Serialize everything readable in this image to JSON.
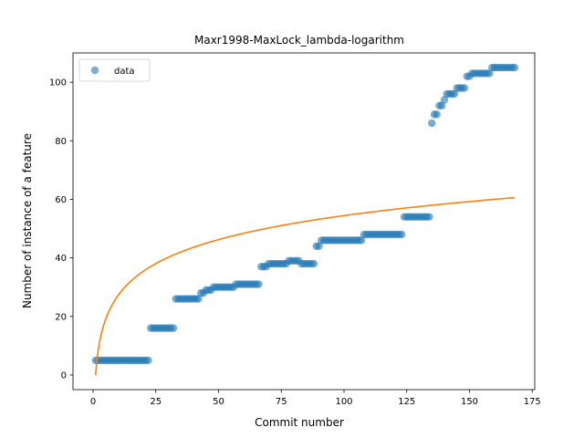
{
  "chart_data": {
    "type": "scatter",
    "title": "Maxr1998-MaxLock_lambda-logarithm",
    "xlabel": "Commit number",
    "ylabel": "Number of instance of a feature",
    "xlim": [
      -8,
      176
    ],
    "ylim": [
      -5,
      110
    ],
    "xticks": [
      0,
      25,
      50,
      75,
      100,
      125,
      150,
      175
    ],
    "yticks": [
      0,
      20,
      40,
      60,
      80,
      100
    ],
    "grid": false,
    "legend": {
      "position": "top-left",
      "entries": [
        "data"
      ]
    },
    "series": [
      {
        "name": "data",
        "kind": "points",
        "color": "#1f77b4",
        "steps": [
          {
            "from": 1,
            "to": 22,
            "y": 5
          },
          {
            "from": 23,
            "to": 32,
            "y": 16
          },
          {
            "from": 33,
            "to": 42,
            "y": 26
          },
          {
            "from": 43,
            "to": 44,
            "y": 28
          },
          {
            "from": 45,
            "to": 47,
            "y": 29
          },
          {
            "from": 48,
            "to": 56,
            "y": 30
          },
          {
            "from": 57,
            "to": 66,
            "y": 31
          },
          {
            "from": 67,
            "to": 69,
            "y": 37
          },
          {
            "from": 70,
            "to": 77,
            "y": 38
          },
          {
            "from": 78,
            "to": 82,
            "y": 39
          },
          {
            "from": 83,
            "to": 88,
            "y": 38
          },
          {
            "from": 89,
            "to": 90,
            "y": 44
          },
          {
            "from": 91,
            "to": 107,
            "y": 46
          },
          {
            "from": 108,
            "to": 123,
            "y": 48
          },
          {
            "from": 124,
            "to": 134,
            "y": 54
          },
          {
            "from": 135,
            "to": 135,
            "y": 86
          },
          {
            "from": 136,
            "to": 137,
            "y": 89
          },
          {
            "from": 138,
            "to": 139,
            "y": 92
          },
          {
            "from": 140,
            "to": 140,
            "y": 94
          },
          {
            "from": 141,
            "to": 144,
            "y": 96
          },
          {
            "from": 145,
            "to": 148,
            "y": 98
          },
          {
            "from": 149,
            "to": 150,
            "y": 102
          },
          {
            "from": 151,
            "to": 158,
            "y": 103
          },
          {
            "from": 159,
            "to": 168,
            "y": 105
          }
        ]
      },
      {
        "name": "",
        "kind": "curve",
        "color": "#ff7f0e",
        "x_range": [
          1,
          168
        ],
        "coef_a": 11.82,
        "coef_b": 0
      }
    ]
  }
}
